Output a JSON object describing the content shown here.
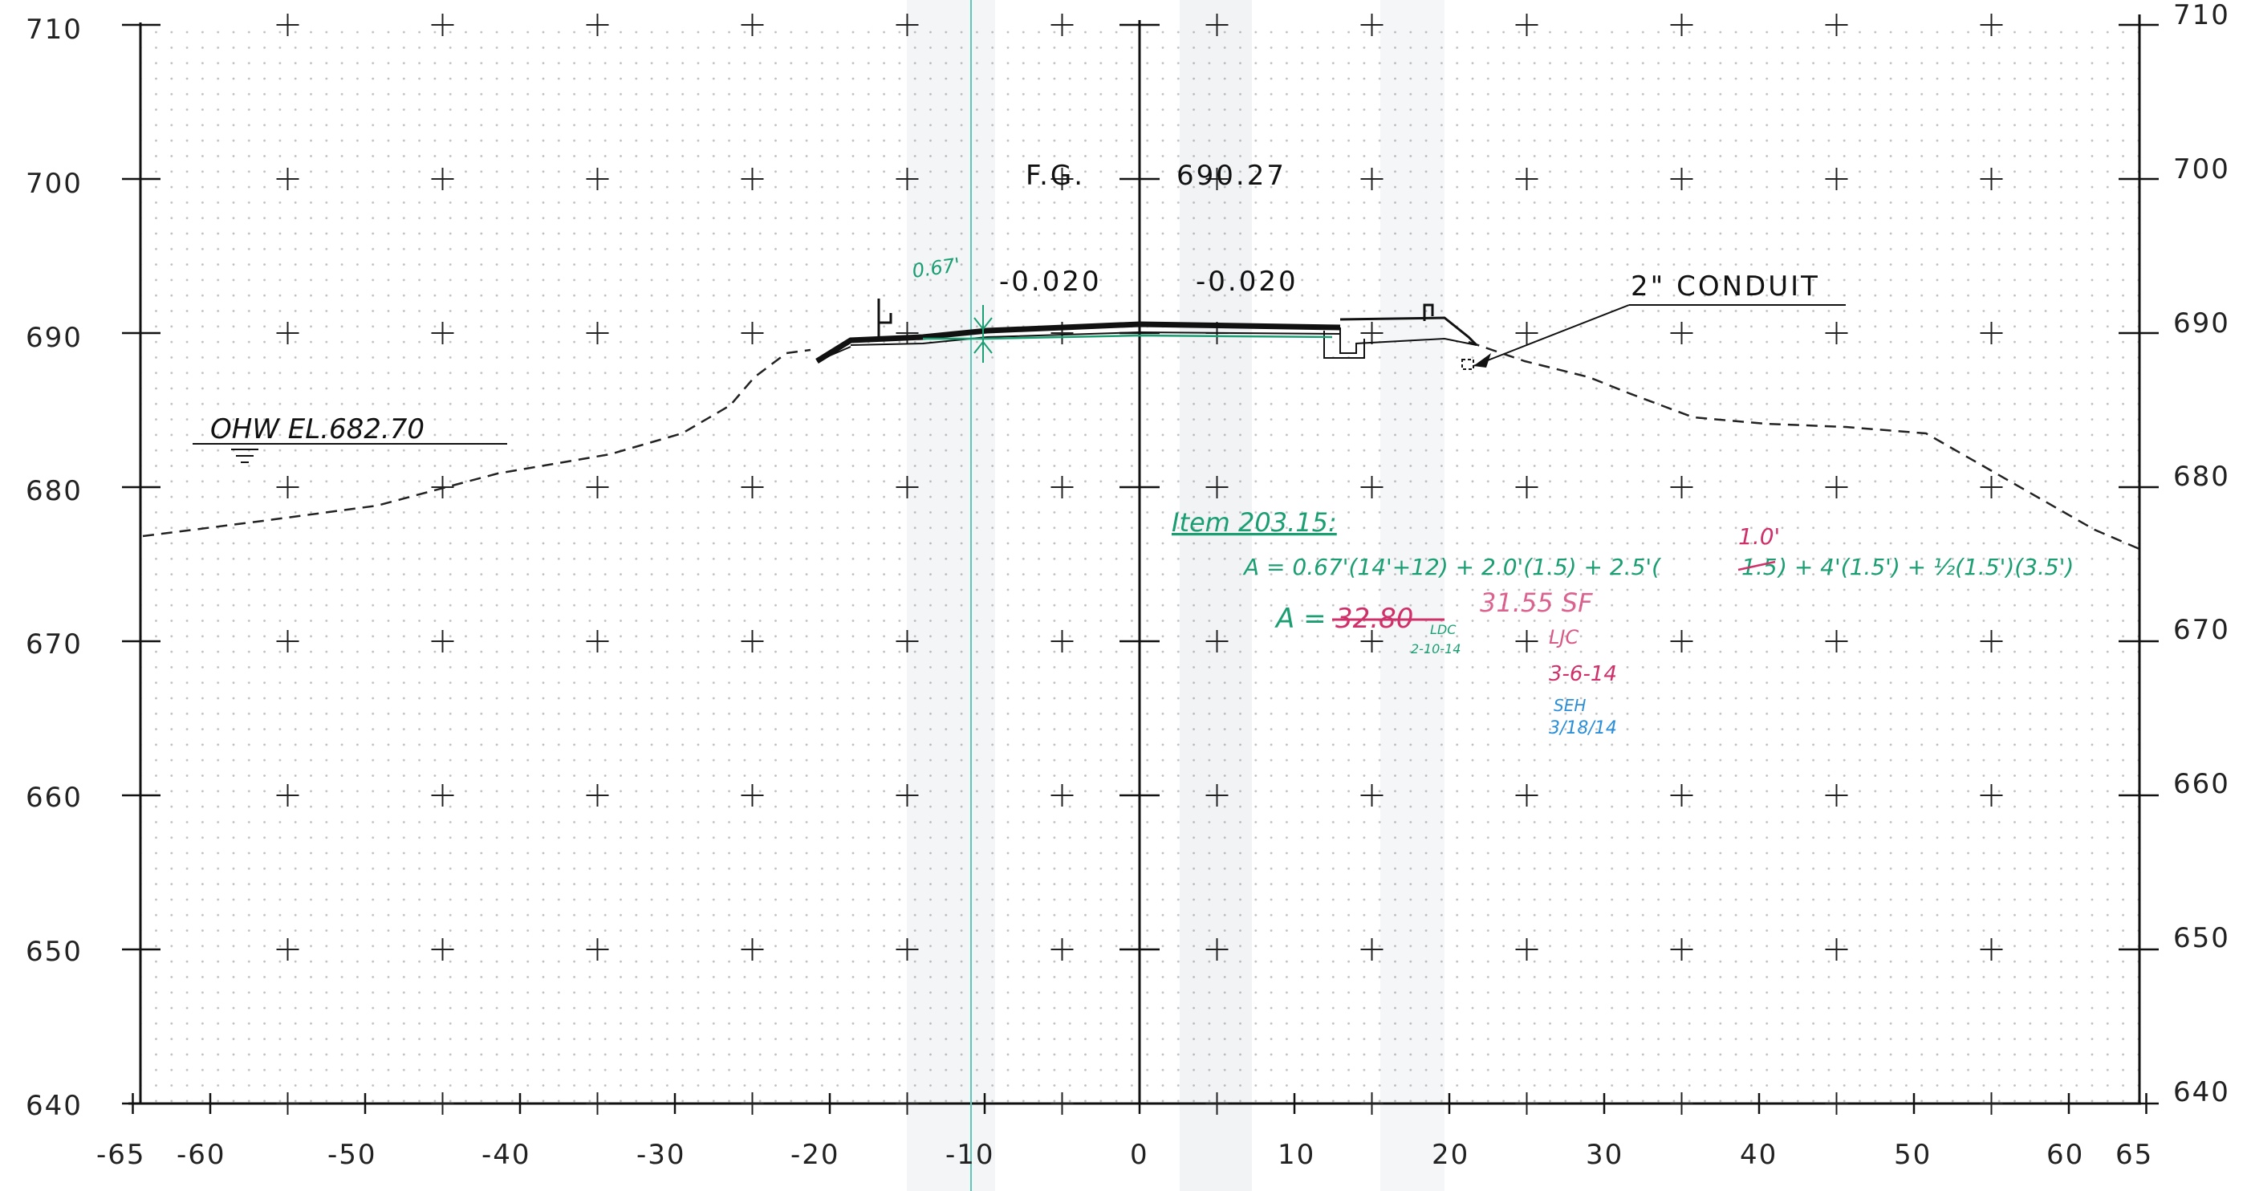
{
  "sheet": {
    "y_axis": {
      "min": 640,
      "max": 710,
      "step": 10,
      "labels": [
        "640",
        "650",
        "660",
        "670",
        "680",
        "690",
        "700",
        "710"
      ]
    },
    "x_axis": {
      "labels": [
        "-65",
        "-60",
        "-50",
        "-40",
        "-30",
        "-20",
        "-10",
        "0",
        "10",
        "20",
        "30",
        "40",
        "50",
        "60",
        "65"
      ],
      "values": [
        -65,
        -60,
        -50,
        -40,
        -30,
        -20,
        -10,
        0,
        10,
        20,
        30,
        40,
        50,
        60,
        65
      ]
    }
  },
  "annotations": {
    "fg_label": "F.G.",
    "fg_value": "690.27",
    "slope_left": "-0.020",
    "slope_right": "-0.020",
    "conduit": "2\" CONDUIT",
    "ohw": "OHW  EL.682.70",
    "dim_067": "0.67'"
  },
  "handwritten": {
    "item": "Item 203.15:",
    "formula_a": "A = 0.67'(14'+12) + 2.0'(1.5) + 2.5'(",
    "formula_struck": "1.5",
    "formula_b": ") + 4'(1.5') + ½(1.5')(3.5')",
    "formula_correction": "1.0'",
    "area_label": "A =",
    "area_struck": "32.80",
    "area_new": "31.55 SF",
    "initials1": "LDC",
    "date1": "2-10-14",
    "initials2": "LJC",
    "date2": "3-6-14",
    "initials3": "SEH",
    "date3": "3/18/14"
  },
  "colors": {
    "ink": "#111111",
    "grid_dot": "#8a8a8a",
    "green": "#1a9e72",
    "red": "#d0306a",
    "blue": "#2a8fd8",
    "teal_line": "#5fc7b8"
  }
}
